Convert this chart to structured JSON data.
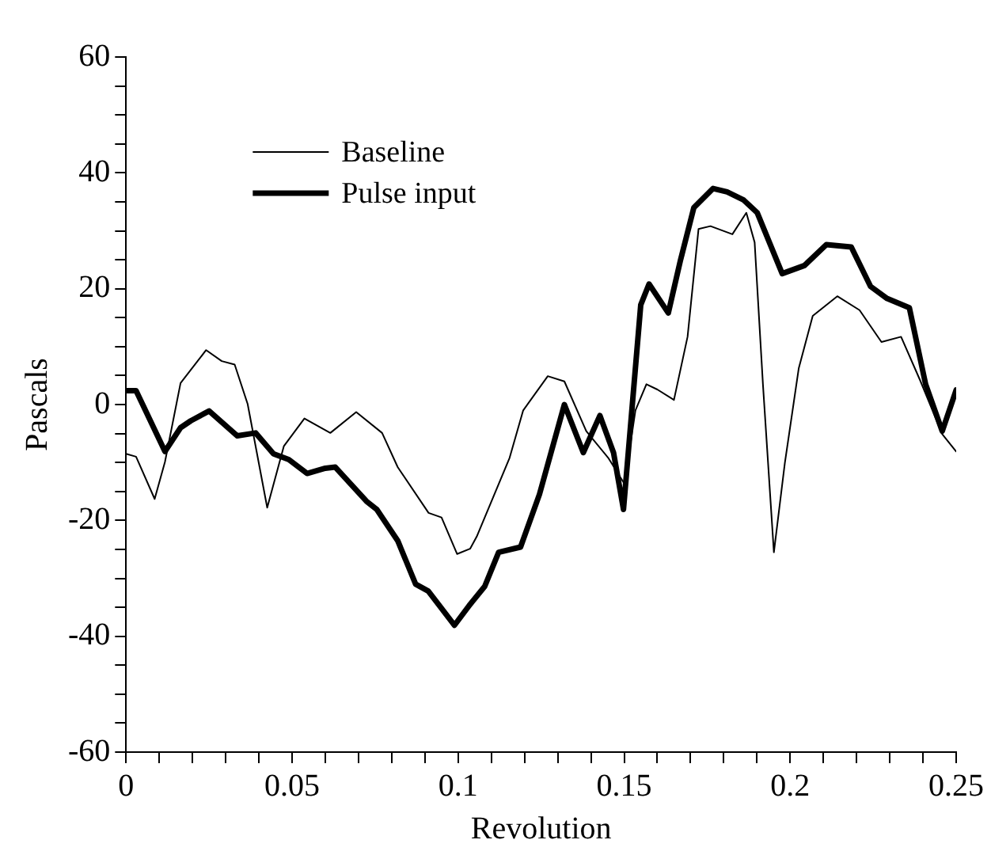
{
  "chart_data": {
    "type": "line",
    "xlabel": "Revolution",
    "ylabel": "Pascals",
    "xlim": [
      0,
      0.25
    ],
    "ylim": [
      -60,
      60
    ],
    "xticks": [
      0,
      {
        "value": 0.01,
        "label": null
      },
      {
        "value": 0.02,
        "label": null
      },
      {
        "value": 0.03,
        "label": null
      },
      {
        "value": 0.04,
        "label": null
      },
      0.05,
      {
        "value": 0.06,
        "label": null
      },
      {
        "value": 0.07,
        "label": null
      },
      {
        "value": 0.08,
        "label": null
      },
      {
        "value": 0.09,
        "label": null
      },
      0.1,
      {
        "value": 0.11,
        "label": null
      },
      {
        "value": 0.12,
        "label": null
      },
      {
        "value": 0.13,
        "label": null
      },
      {
        "value": 0.14,
        "label": null
      },
      0.15,
      {
        "value": 0.16,
        "label": null
      },
      {
        "value": 0.17,
        "label": null
      },
      {
        "value": 0.18,
        "label": null
      },
      {
        "value": 0.19,
        "label": null
      },
      0.2,
      {
        "value": 0.21,
        "label": null
      },
      {
        "value": 0.22,
        "label": null
      },
      {
        "value": 0.23,
        "label": null
      },
      {
        "value": 0.24,
        "label": null
      },
      0.25
    ],
    "yticks": [
      -60,
      {
        "value": -55,
        "label": null
      },
      {
        "value": -50,
        "label": null
      },
      {
        "value": -45,
        "label": null
      },
      -40,
      {
        "value": -35,
        "label": null
      },
      {
        "value": -30,
        "label": null
      },
      {
        "value": -25,
        "label": null
      },
      -20,
      {
        "value": -15,
        "label": null
      },
      {
        "value": -10,
        "label": null
      },
      {
        "value": -5,
        "label": null
      },
      0,
      {
        "value": 5,
        "label": null
      },
      {
        "value": 10,
        "label": null
      },
      {
        "value": 15,
        "label": null
      },
      20,
      {
        "value": 25,
        "label": null
      },
      {
        "value": 30,
        "label": null
      },
      {
        "value": 35,
        "label": null
      },
      40,
      {
        "value": 45,
        "label": null
      },
      {
        "value": 50,
        "label": null
      },
      {
        "value": 55,
        "label": null
      },
      60
    ],
    "grid": false,
    "legend": "top left",
    "marker": "none",
    "line_style": "solid",
    "series": [
      {
        "name": "Baseline",
        "color": "#000000",
        "x": [
          0,
          0.003,
          0.0086,
          0.0117,
          0.0164,
          0.0241,
          0.0288,
          0.0327,
          0.0366,
          0.0425,
          0.0475,
          0.0537,
          0.0615,
          0.0693,
          0.0771,
          0.0818,
          0.0911,
          0.095,
          0.0997,
          0.1036,
          0.1056,
          0.1155,
          0.1196,
          0.127,
          0.132,
          0.1386,
          0.1452,
          0.1501,
          0.1534,
          0.1567,
          0.16,
          0.165,
          0.1691,
          0.1724,
          0.176,
          0.1826,
          0.1868,
          0.1893,
          0.1918,
          0.1951,
          0.1984,
          0.2026,
          0.2068,
          0.2142,
          0.2209,
          0.2275,
          0.2334,
          0.2392,
          0.2458,
          0.25
        ],
        "values": [
          -8.5,
          -9,
          -16.3,
          -9.9,
          3.7,
          9.4,
          7.5,
          6.9,
          0.1,
          -17.8,
          -7.2,
          -2.4,
          -4.9,
          -1.3,
          -4.9,
          -10.8,
          -18.7,
          -19.5,
          -25.8,
          -24.9,
          -22.8,
          -9.2,
          -1,
          4.9,
          4,
          -4.6,
          -9.2,
          -13.7,
          -1,
          3.5,
          2.6,
          0.8,
          11.7,
          30.3,
          30.8,
          29.4,
          33.1,
          28,
          3.5,
          -25.5,
          -10.1,
          6.3,
          15.3,
          18.7,
          16.3,
          10.8,
          11.7,
          4.1,
          -5.1,
          -8.1
        ]
      },
      {
        "name": "Pulse input",
        "color": "#000000",
        "x": [
          0,
          0.003,
          0.0117,
          0.0164,
          0.0195,
          0.025,
          0.0335,
          0.039,
          0.0444,
          0.049,
          0.0545,
          0.06,
          0.063,
          0.0724,
          0.0755,
          0.0818,
          0.0872,
          0.091,
          0.0989,
          0.1036,
          0.108,
          0.1122,
          0.1188,
          0.1245,
          0.132,
          0.1377,
          0.1427,
          0.1468,
          0.1498,
          0.155,
          0.1575,
          0.1633,
          0.167,
          0.171,
          0.1768,
          0.181,
          0.186,
          0.1901,
          0.1976,
          0.2043,
          0.2109,
          0.2184,
          0.2242,
          0.2292,
          0.2359,
          0.2408,
          0.2458,
          0.25
        ],
        "values": [
          2.4,
          2.4,
          -8.1,
          -4,
          -2.8,
          -1.1,
          -5.4,
          -4.9,
          -8.5,
          -9.5,
          -11.9,
          -11,
          -10.8,
          -16.7,
          -18.1,
          -23.5,
          -31,
          -32.2,
          -38.1,
          -34.5,
          -31.4,
          -25.5,
          -24.6,
          -15.5,
          0,
          -8.3,
          -1.9,
          -8.3,
          -18.1,
          17.2,
          20.8,
          15.8,
          25,
          34,
          37.3,
          36.7,
          35.3,
          33.1,
          22.6,
          24,
          27.6,
          27.2,
          20.4,
          18.3,
          16.7,
          3.5,
          -4.6,
          2.5
        ]
      }
    ]
  }
}
